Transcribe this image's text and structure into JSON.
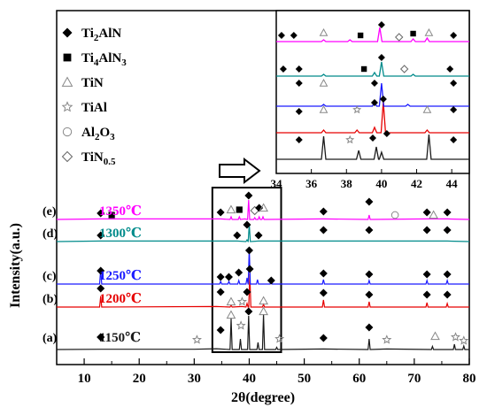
{
  "chart_data": {
    "type": "line",
    "xlabel_theta": "θ",
    "xlabel_rest": "(degree)",
    "ylabel": "Intensity(a.u.)",
    "xlim": [
      5,
      80
    ],
    "xticks": [
      10,
      20,
      30,
      40,
      50,
      60,
      70,
      80
    ],
    "grid": false,
    "series": [
      {
        "label": "(a)",
        "temp": "1150℃",
        "color": "#1a1a1a",
        "x": [
          5,
          13,
          30,
          34,
          36.7,
          38.4,
          39.9,
          41.6,
          42.6,
          45,
          53.5,
          61.8,
          65,
          73.3,
          77.3,
          79
        ],
        "y": [
          0,
          0.5,
          0.5,
          1.5,
          35,
          12,
          38,
          8,
          40,
          2.5,
          1,
          12,
          1,
          3.5,
          6,
          4
        ]
      },
      {
        "label": "(b)",
        "temp": "1200℃",
        "color": "#e60000",
        "x": [
          5,
          13,
          34,
          36.7,
          38.7,
          39.6,
          40.1,
          42.6,
          53.5,
          61.8,
          72.3,
          76
        ],
        "y": [
          0,
          12,
          1,
          2,
          1,
          4,
          38,
          3,
          8,
          6,
          5,
          4
        ]
      },
      {
        "label": "(c)",
        "temp": "1250℃",
        "color": "#1a1aff",
        "x": [
          5,
          13,
          34.8,
          36.3,
          38.1,
          39.6,
          40.0,
          41.5,
          44,
          53.5,
          61.8,
          72.3,
          76
        ],
        "y": [
          0,
          16,
          3,
          3,
          4,
          7,
          40,
          5,
          3,
          5,
          4,
          4,
          4
        ]
      },
      {
        "label": "(d)",
        "temp": "1300℃",
        "color": "#008b8b",
        "x": [
          5,
          13,
          37.8,
          39.6,
          40.0,
          41.7,
          53.5,
          61.8,
          72.3,
          76
        ],
        "y": [
          0,
          1,
          1,
          2,
          20,
          1,
          1,
          1,
          1,
          1
        ]
      },
      {
        "label": "(e)",
        "temp": "1350℃",
        "color": "#ff00ff",
        "x": [
          5,
          13,
          34.8,
          36.7,
          38.2,
          39.2,
          39.9,
          41.0,
          41.8,
          42.5,
          53.5,
          61.8,
          72.3,
          76
        ],
        "y": [
          0,
          1,
          1,
          3,
          3,
          1,
          22,
          2,
          3,
          3,
          1,
          5,
          1,
          1
        ]
      }
    ],
    "inset": {
      "xlim": [
        34,
        45
      ],
      "xticks": [
        34,
        36,
        38,
        40,
        42,
        44
      ]
    },
    "legend": [
      {
        "symbol": "diamond",
        "label_main": "Ti",
        "sub1": "2",
        "mid": "AlN",
        "sub2": "",
        "end": ""
      },
      {
        "symbol": "square",
        "label_main": "Ti",
        "sub1": "4",
        "mid": "AlN",
        "sub2": "3",
        "end": ""
      },
      {
        "symbol": "triangle",
        "label_main": "TiN",
        "sub1": "",
        "mid": "",
        "sub2": "",
        "end": ""
      },
      {
        "symbol": "star",
        "label_main": "TiAl",
        "sub1": "",
        "mid": "",
        "sub2": "",
        "end": ""
      },
      {
        "symbol": "circle",
        "label_main": "Al",
        "sub1": "2",
        "mid": "O",
        "sub2": "3",
        "end": ""
      },
      {
        "symbol": "hollow-diamond",
        "label_main": "TiN",
        "sub1": "0.5",
        "mid": "",
        "sub2": "",
        "end": ""
      }
    ]
  }
}
